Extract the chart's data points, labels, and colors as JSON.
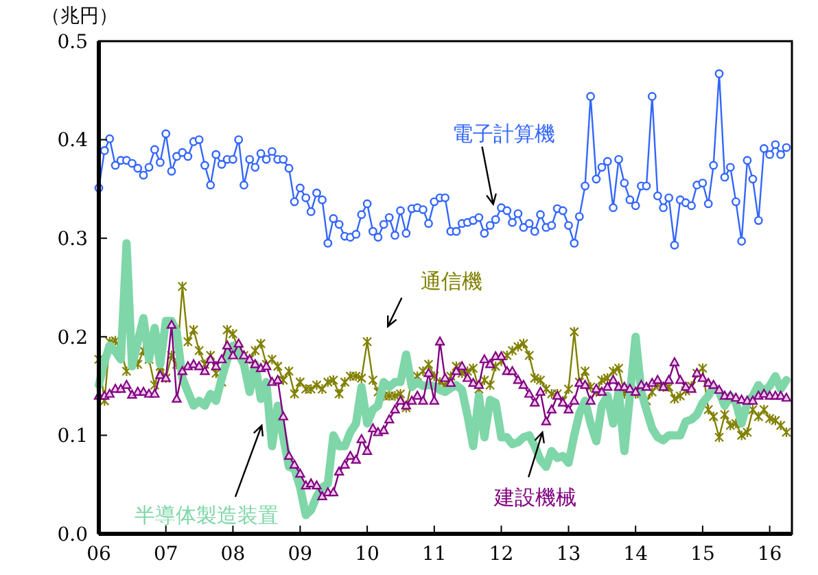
{
  "chart_data": {
    "type": "line",
    "ylabel": "（兆円）",
    "x": [
      "2006-01",
      "2006-02",
      "2006-03",
      "2006-04",
      "2006-05",
      "2006-06",
      "2006-07",
      "2006-08",
      "2006-09",
      "2006-10",
      "2006-11",
      "2006-12",
      "2007-01",
      "2007-02",
      "2007-03",
      "2007-04",
      "2007-05",
      "2007-06",
      "2007-07",
      "2007-08",
      "2007-09",
      "2007-10",
      "2007-11",
      "2007-12",
      "2008-01",
      "2008-02",
      "2008-03",
      "2008-04",
      "2008-05",
      "2008-06",
      "2008-07",
      "2008-08",
      "2008-09",
      "2008-10",
      "2008-11",
      "2008-12",
      "2009-01",
      "2009-02",
      "2009-03",
      "2009-04",
      "2009-05",
      "2009-06",
      "2009-07",
      "2009-08",
      "2009-09",
      "2009-10",
      "2009-11",
      "2009-12",
      "2010-01",
      "2010-02",
      "2010-03",
      "2010-04",
      "2010-05",
      "2010-06",
      "2010-07",
      "2010-08",
      "2010-09",
      "2010-10",
      "2010-11",
      "2010-12",
      "2011-01",
      "2011-02",
      "2011-03",
      "2011-04",
      "2011-05",
      "2011-06",
      "2011-07",
      "2011-08",
      "2011-09",
      "2011-10",
      "2011-11",
      "2011-12",
      "2012-01",
      "2012-02",
      "2012-03",
      "2012-04",
      "2012-05",
      "2012-06",
      "2012-07",
      "2012-08",
      "2012-09",
      "2012-10",
      "2012-11",
      "2012-12",
      "2013-01",
      "2013-02",
      "2013-03",
      "2013-04",
      "2013-05",
      "2013-06",
      "2013-07",
      "2013-08",
      "2013-09",
      "2013-10",
      "2013-11",
      "2013-12",
      "2014-01",
      "2014-02",
      "2014-03",
      "2014-04",
      "2014-05",
      "2014-06",
      "2014-07",
      "2014-08",
      "2014-09",
      "2014-10",
      "2014-11",
      "2014-12",
      "2015-01",
      "2015-02",
      "2015-03",
      "2015-04",
      "2015-05",
      "2015-06",
      "2015-07",
      "2015-08",
      "2015-09",
      "2015-10",
      "2015-11",
      "2015-12",
      "2016-01",
      "2016-02",
      "2016-03",
      "2016-04"
    ],
    "series": [
      {
        "name": "電子計算機",
        "color": "#3366ff",
        "marker": "circle",
        "values": [
          0.351,
          0.389,
          0.401,
          0.374,
          0.379,
          0.379,
          0.376,
          0.371,
          0.364,
          0.372,
          0.39,
          0.377,
          0.406,
          0.368,
          0.383,
          0.387,
          0.383,
          0.398,
          0.4,
          0.374,
          0.354,
          0.385,
          0.375,
          0.38,
          0.38,
          0.4,
          0.354,
          0.38,
          0.372,
          0.386,
          0.38,
          0.388,
          0.38,
          0.38,
          0.371,
          0.337,
          0.351,
          0.341,
          0.327,
          0.346,
          0.339,
          0.295,
          0.32,
          0.314,
          0.302,
          0.301,
          0.304,
          0.324,
          0.335,
          0.307,
          0.301,
          0.314,
          0.321,
          0.303,
          0.328,
          0.305,
          0.33,
          0.331,
          0.329,
          0.315,
          0.337,
          0.341,
          0.341,
          0.307,
          0.307,
          0.315,
          0.316,
          0.318,
          0.321,
          0.305,
          0.313,
          0.319,
          0.331,
          0.328,
          0.316,
          0.325,
          0.311,
          0.315,
          0.307,
          0.324,
          0.311,
          0.313,
          0.33,
          0.328,
          0.313,
          0.295,
          0.322,
          0.353,
          0.444,
          0.36,
          0.372,
          0.378,
          0.331,
          0.38,
          0.356,
          0.339,
          0.333,
          0.353,
          0.353,
          0.444,
          0.343,
          0.331,
          0.341,
          0.293,
          0.339,
          0.336,
          0.333,
          0.354,
          0.356,
          0.335,
          0.374,
          0.467,
          0.362,
          0.372,
          0.337,
          0.297,
          0.379,
          0.36,
          0.318,
          0.391,
          0.385,
          0.395,
          0.385,
          0.392
        ]
      },
      {
        "name": "通信機",
        "color": "#808000",
        "marker": "cross",
        "values": [
          0.177,
          0.135,
          0.195,
          0.196,
          0.186,
          0.165,
          null,
          0.172,
          0.186,
          0.177,
          0.151,
          0.17,
          0.158,
          0.181,
          0.172,
          0.251,
          0.195,
          0.207,
          0.186,
          0.172,
          0.181,
          0.163,
          0.154,
          0.207,
          0.203,
          0.186,
          0.181,
          0.177,
          0.186,
          0.193,
          0.172,
          0.177,
          0.17,
          0.156,
          0.165,
          0.142,
          0.154,
          0.147,
          0.147,
          0.151,
          0.147,
          0.154,
          0.156,
          0.142,
          0.154,
          0.16,
          0.16,
          0.158,
          0.195,
          0.156,
          0.144,
          0.14,
          0.14,
          0.14,
          0.142,
          0.128,
          0.155,
          0.16,
          0.165,
          0.172,
          0.16,
          0.154,
          0.151,
          0.16,
          0.17,
          0.163,
          0.165,
          0.168,
          0.147,
          0.156,
          0.151,
          0.17,
          0.175,
          0.181,
          0.186,
          0.19,
          0.193,
          0.181,
          0.158,
          0.156,
          0.147,
          0.142,
          0.142,
          0.135,
          0.147,
          0.205,
          0.154,
          0.165,
          0.149,
          0.144,
          0.156,
          0.158,
          0.165,
          0.168,
          0.142,
          0.147,
          0.142,
          0.142,
          0.135,
          0.144,
          0.151,
          0.149,
          0.149,
          0.137,
          0.14,
          0.145,
          0.15,
          0.163,
          0.168,
          0.126,
          0.119,
          0.098,
          0.121,
          0.11,
          0.112,
          0.1,
          0.103,
          0.126,
          0.119,
          0.126,
          0.117,
          0.115,
          0.11,
          0.103
        ]
      },
      {
        "name": "半導体製造装置",
        "color": "#7fd6a8",
        "marker": "none",
        "values": [
          0.151,
          0.175,
          0.191,
          0.185,
          0.177,
          0.295,
          0.17,
          0.195,
          0.219,
          0.177,
          0.209,
          0.172,
          0.216,
          0.216,
          0.205,
          0.158,
          0.144,
          0.13,
          0.135,
          0.13,
          0.142,
          0.135,
          0.158,
          0.177,
          0.191,
          0.182,
          0.172,
          0.144,
          0.172,
          0.137,
          0.154,
          0.089,
          0.13,
          0.098,
          0.068,
          0.066,
          0.047,
          0.019,
          0.024,
          0.038,
          0.047,
          0.051,
          0.1,
          0.089,
          0.089,
          0.103,
          0.112,
          0.149,
          0.112,
          0.126,
          0.13,
          0.154,
          0.149,
          0.154,
          0.154,
          0.182,
          0.149,
          0.154,
          0.15,
          0.151,
          0.15,
          0.146,
          0.144,
          0.148,
          0.151,
          0.146,
          0.12,
          0.089,
          0.14,
          0.098,
          0.136,
          0.133,
          0.098,
          0.098,
          0.091,
          0.093,
          0.098,
          0.1,
          0.089,
          0.075,
          0.068,
          0.084,
          0.077,
          0.079,
          0.072,
          0.1,
          0.122,
          0.135,
          0.112,
          0.094,
          0.13,
          0.14,
          0.112,
          0.145,
          0.084,
          0.14,
          0.2,
          0.144,
          0.126,
          0.107,
          0.098,
          0.095,
          0.1,
          0.1,
          0.1,
          0.114,
          0.116,
          0.121,
          0.133,
          0.14,
          0.149,
          0.144,
          0.13,
          0.14,
          0.133,
          0.112,
          0.133,
          0.14,
          0.151,
          0.144,
          0.15,
          0.16,
          0.147,
          0.156
        ]
      },
      {
        "name": "建設機械",
        "color": "#800080",
        "marker": "triangle",
        "values": [
          0.14,
          0.14,
          0.142,
          0.147,
          0.147,
          0.151,
          0.141,
          0.144,
          0.144,
          0.142,
          0.142,
          0.161,
          0.158,
          0.212,
          0.137,
          0.165,
          0.17,
          0.172,
          0.17,
          0.165,
          0.177,
          0.17,
          0.177,
          0.191,
          0.181,
          0.193,
          0.181,
          0.177,
          0.172,
          0.168,
          0.17,
          0.154,
          0.156,
          0.119,
          0.079,
          0.07,
          0.061,
          0.049,
          0.051,
          0.049,
          0.038,
          0.042,
          0.042,
          0.063,
          0.07,
          0.079,
          0.075,
          0.096,
          0.084,
          0.107,
          0.103,
          0.105,
          0.116,
          0.126,
          0.135,
          0.13,
          0.135,
          0.14,
          0.135,
          0.163,
          0.135,
          0.195,
          0.158,
          0.153,
          0.165,
          0.17,
          0.158,
          0.153,
          0.151,
          0.177,
          0.172,
          0.18,
          0.18,
          0.165,
          0.165,
          0.156,
          0.151,
          0.142,
          0.133,
          0.144,
          0.114,
          0.126,
          0.14,
          0.133,
          0.126,
          0.135,
          0.153,
          0.151,
          0.135,
          0.147,
          0.144,
          0.149,
          0.156,
          0.149,
          0.149,
          0.147,
          0.144,
          0.151,
          0.149,
          0.153,
          0.156,
          0.149,
          0.156,
          0.174,
          0.156,
          0.149,
          0.147,
          0.163,
          0.158,
          0.153,
          0.151,
          0.146,
          0.14,
          0.14,
          0.138,
          0.136,
          0.135,
          0.135,
          0.14,
          0.142,
          0.14,
          0.14,
          0.14,
          0.138
        ]
      }
    ],
    "xlim": [
      "2006-01",
      "2016-05"
    ],
    "xticks": [
      {
        "value": "2006",
        "label": "06"
      },
      {
        "value": "2007",
        "label": "07"
      },
      {
        "value": "2008",
        "label": "08"
      },
      {
        "value": "2009",
        "label": "09"
      },
      {
        "value": "2010",
        "label": "10"
      },
      {
        "value": "2011",
        "label": "11"
      },
      {
        "value": "2012",
        "label": "12"
      },
      {
        "value": "2013",
        "label": "13"
      },
      {
        "value": "2014",
        "label": "14"
      },
      {
        "value": "2015",
        "label": "15"
      },
      {
        "value": "2016",
        "label": "16"
      }
    ],
    "ylim": [
      0,
      0.5
    ],
    "yticks": [
      {
        "value": 0,
        "label": "0.0"
      },
      {
        "value": 0.1,
        "label": "0.1"
      },
      {
        "value": 0.2,
        "label": "0.2"
      },
      {
        "value": 0.3,
        "label": "0.3"
      },
      {
        "value": 0.4,
        "label": "0.4"
      },
      {
        "value": 0.5,
        "label": "0.5"
      }
    ],
    "grid": false,
    "legend": false
  }
}
